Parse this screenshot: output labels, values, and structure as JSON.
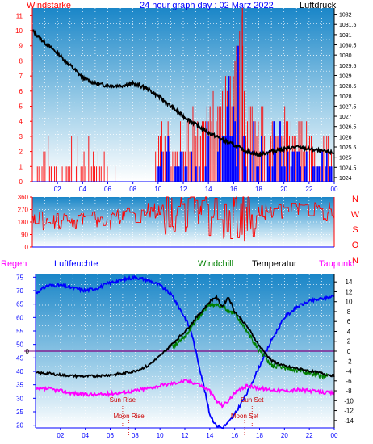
{
  "titles": {
    "graph_title": "24 hour graph day : 02 Marz 2022",
    "wind_label": "Windstarke",
    "pressure_label": "Luftdruck",
    "regen_label": "Regen",
    "humidity_label": "Luftfeuchte",
    "windchill_label": "Windchill",
    "temperature_label": "Temperatur",
    "dewpoint_label": "Taupunkt",
    "sun_rise": "Sun Rise",
    "sun_set": "Sun Set",
    "moon_rise": "Moon Rise",
    "moon_set": "Moon Set"
  },
  "colors": {
    "wind": "#ff0000",
    "gust_fill": "#0000ff",
    "pressure": "#000000",
    "direction": "#ff0000",
    "humidity": "#0000ff",
    "temperature": "#000000",
    "windchill": "#008000",
    "dewpoint": "#ff00ff",
    "zero_line": "#800080",
    "axis_red": "#ff0000",
    "axis_blue": "#0000ff",
    "axis_black": "#000000"
  },
  "chart_data": [
    {
      "type": "line",
      "name": "wind-pressure",
      "x_ticks": [
        "02",
        "04",
        "06",
        "08",
        "10",
        "12",
        "14",
        "16",
        "18",
        "20",
        "22",
        "00"
      ],
      "y_left_ticks": [
        "0",
        "1",
        "2",
        "3",
        "4",
        "5",
        "6",
        "7",
        "8",
        "9",
        "10",
        "11"
      ],
      "y_right_ticks": [
        "1024",
        "1024.5",
        "1025",
        "1025.5",
        "1026",
        "1026.5",
        "1027",
        "1027.5",
        "1028",
        "1028.5",
        "1029",
        "1029.5",
        "1030",
        "1030.5",
        "1031",
        "1031.5",
        "1032"
      ],
      "ylim_left": [
        0,
        11.5
      ],
      "ylim_right": [
        1023.8,
        1032.3
      ],
      "series": [
        {
          "axis": "left",
          "x": [
            0.5,
            1,
            2,
            3,
            4,
            5,
            6,
            7,
            8,
            9,
            10,
            11,
            12,
            13,
            14,
            15,
            16,
            16.7,
            17,
            18,
            19,
            20,
            21,
            22,
            23,
            23.9
          ],
          "y": [
            1,
            2,
            0,
            2,
            1,
            2,
            0,
            0,
            0,
            0,
            3,
            2,
            3,
            4,
            4,
            5,
            7,
            11,
            4,
            4,
            3,
            4,
            3,
            3,
            2,
            2
          ]
        },
        {
          "axis": "right",
          "x": [
            0,
            1,
            2,
            3,
            4,
            5,
            6,
            7,
            8,
            9,
            10,
            11,
            12,
            13,
            14,
            15,
            16,
            17,
            18,
            19,
            20,
            21,
            22,
            23,
            24
          ],
          "y": [
            1031.2,
            1030.6,
            1030.1,
            1029.5,
            1028.9,
            1028.6,
            1028.5,
            1028.5,
            1028.6,
            1028.4,
            1028.0,
            1027.5,
            1027.0,
            1026.6,
            1026.2,
            1025.9,
            1025.6,
            1025.3,
            1025.1,
            1025.3,
            1025.4,
            1025.5,
            1025.4,
            1025.3,
            1025.2
          ]
        }
      ],
      "grid": true
    },
    {
      "type": "line",
      "name": "wind-direction",
      "x": [
        0,
        1,
        2,
        3,
        4,
        5,
        6,
        7,
        8,
        9,
        10,
        11,
        12,
        13,
        14,
        15,
        16,
        17,
        18,
        19,
        20,
        21,
        22,
        23,
        24
      ],
      "y": [
        210,
        180,
        200,
        150,
        180,
        200,
        190,
        200,
        240,
        260,
        250,
        230,
        250,
        200,
        220,
        180,
        240,
        200,
        240,
        250,
        270,
        260,
        250,
        260,
        250
      ],
      "y_ticks": [
        "0",
        "90",
        "180",
        "270",
        "360"
      ],
      "ylim": [
        0,
        360
      ],
      "compass_labels": [
        "N",
        "W",
        "S",
        "O",
        "N"
      ]
    },
    {
      "type": "line",
      "name": "temperature-humidity",
      "x_ticks": [
        "02",
        "04",
        "06",
        "08",
        "10",
        "12",
        "14",
        "16",
        "18",
        "20",
        "22",
        "00"
      ],
      "y_left_ticks": [
        "20",
        "25",
        "30",
        "35",
        "40",
        "45",
        "50",
        "55",
        "60",
        "65",
        "70",
        "75"
      ],
      "y_right_ticks": [
        "14",
        "12",
        "10",
        "8",
        "6",
        "4",
        "2",
        "0",
        "-2",
        "-4",
        "-6",
        "-8",
        "-10",
        "-12",
        "-14"
      ],
      "zero_label": "0",
      "ylim_left": [
        19,
        76
      ],
      "ylim_right": [
        -15.5,
        15.5
      ],
      "series": [
        {
          "axis": "left",
          "x": [
            0,
            1,
            2,
            3,
            4,
            5,
            6,
            7,
            8,
            9,
            10,
            11,
            12,
            12.5,
            13,
            13.5,
            14,
            14.5,
            15,
            15.5,
            16,
            17,
            18,
            19,
            20,
            21,
            22,
            23,
            24
          ],
          "y": [
            69,
            72,
            72,
            71,
            70,
            71,
            73,
            74,
            75,
            74,
            72,
            68,
            60,
            55,
            45,
            35,
            24,
            20,
            19,
            21,
            24,
            32,
            42,
            52,
            60,
            64,
            66,
            67,
            68
          ]
        },
        {
          "axis": "right",
          "x": [
            0,
            1,
            2,
            3,
            4,
            5,
            6,
            7,
            8,
            9,
            10,
            11,
            12,
            13,
            14,
            14.5,
            15,
            15.5,
            16,
            17,
            18,
            19,
            20,
            21,
            22,
            23,
            24
          ],
          "y": [
            -4.4,
            -4.5,
            -4.8,
            -5,
            -5.1,
            -5,
            -4.8,
            -4.5,
            -4,
            -3,
            -1,
            1.5,
            4,
            7,
            10,
            11,
            9,
            11,
            8,
            5,
            1,
            -2,
            -3,
            -3.5,
            -4,
            -4.5,
            -5
          ]
        },
        {
          "axis": "right",
          "x": [
            11,
            12,
            13,
            14,
            15,
            16,
            17,
            18,
            19,
            20,
            21,
            22,
            23
          ],
          "y": [
            0.8,
            3,
            6.5,
            9.5,
            9,
            7.5,
            4,
            0,
            -3,
            -3.2,
            -3.8,
            -4.5,
            -5
          ]
        },
        {
          "axis": "right",
          "x": [
            0,
            1,
            2,
            3,
            4,
            5,
            6,
            7,
            8,
            9,
            10,
            11,
            12,
            13,
            14,
            14.5,
            15,
            15.5,
            16,
            17,
            18,
            19,
            20,
            21,
            22,
            23,
            24
          ],
          "y": [
            -7.8,
            -7.6,
            -8,
            -8.5,
            -8.7,
            -8.8,
            -8.6,
            -8.3,
            -8,
            -7.5,
            -7,
            -6.5,
            -6,
            -6.5,
            -8,
            -10,
            -11,
            -10,
            -8.5,
            -7,
            -7.5,
            -7.8,
            -8,
            -7.8,
            -8,
            -8.3,
            -8.5
          ]
        }
      ]
    }
  ]
}
